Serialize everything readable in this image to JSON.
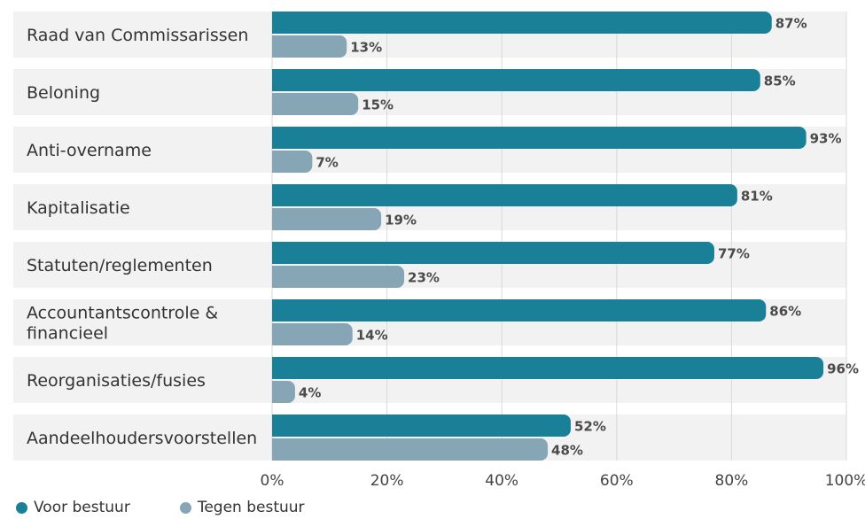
{
  "chart_data": {
    "type": "bar",
    "orientation": "horizontal",
    "categories": [
      "Raad van Commissarissen",
      "Beloning",
      "Anti-overname",
      "Kapitalisatie",
      "Statuten/reglementen",
      "Accountantscontrole & financieel",
      "Reorganisaties/fusies",
      "Aandeelhoudersvoorstellen"
    ],
    "series": [
      {
        "name": "Voor bestuur",
        "color": "#1a8097",
        "values": [
          87,
          85,
          93,
          81,
          77,
          86,
          96,
          52
        ]
      },
      {
        "name": "Tegen bestuur",
        "color": "#86a6b5",
        "values": [
          13,
          15,
          7,
          19,
          23,
          14,
          4,
          48
        ]
      }
    ],
    "value_suffix": "%",
    "xlim": [
      0,
      100
    ],
    "xticks": [
      "0%",
      "20%",
      "40%",
      "60%",
      "80%",
      "100%"
    ],
    "grid": true,
    "legend_position": "bottom-left"
  }
}
